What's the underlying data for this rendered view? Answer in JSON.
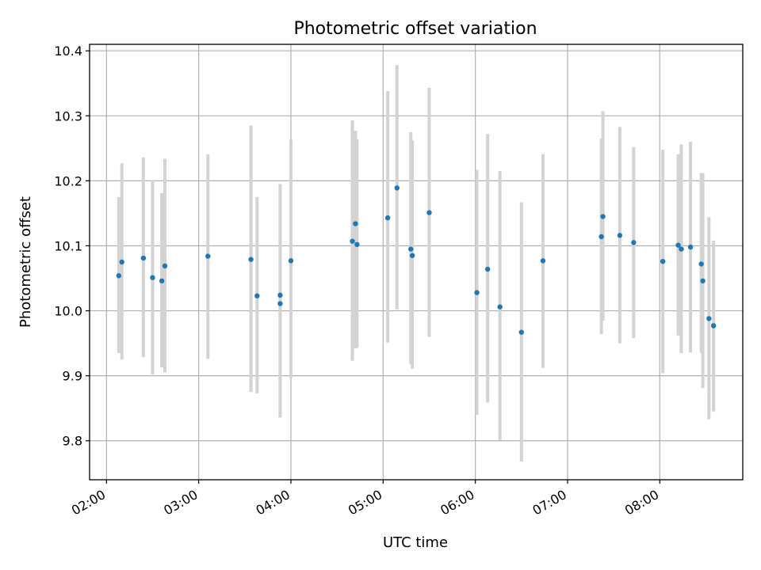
{
  "chart_data": {
    "type": "scatter",
    "title": "Photometric offset variation",
    "xlabel": "UTC time",
    "ylabel": "Photometric offset",
    "x_ticks": [
      "02:00",
      "03:00",
      "04:00",
      "05:00",
      "06:00",
      "07:00",
      "08:00"
    ],
    "y_ticks": [
      "9.8",
      "9.9",
      "10.0",
      "10.1",
      "10.2",
      "10.3",
      "10.4"
    ],
    "xlim": [
      "01:49",
      "08:54"
    ],
    "ylim": [
      9.74,
      10.41
    ],
    "grid": true,
    "colors": {
      "point": "#1f77b4",
      "errorbar": "#d3d3d3",
      "grid": "#b0b0b0"
    },
    "points": [
      {
        "t": "02:08",
        "y": 10.054,
        "lo": 9.935,
        "hi": 10.175
      },
      {
        "t": "02:10",
        "y": 10.075,
        "lo": 9.925,
        "hi": 10.227
      },
      {
        "t": "02:24",
        "y": 10.081,
        "lo": 9.929,
        "hi": 10.236
      },
      {
        "t": "02:30",
        "y": 10.051,
        "lo": 9.902,
        "hi": 10.201
      },
      {
        "t": "02:36",
        "y": 10.046,
        "lo": 9.913,
        "hi": 10.181
      },
      {
        "t": "02:38",
        "y": 10.069,
        "lo": 9.905,
        "hi": 10.234
      },
      {
        "t": "03:06",
        "y": 10.084,
        "lo": 9.926,
        "hi": 10.241
      },
      {
        "t": "03:34",
        "y": 10.079,
        "lo": 9.875,
        "hi": 10.285
      },
      {
        "t": "03:38",
        "y": 10.023,
        "lo": 9.873,
        "hi": 10.175
      },
      {
        "t": "03:53",
        "y": 10.024,
        "lo": 9.836,
        "hi": 10.195
      },
      {
        "t": "03:53",
        "y": 10.011,
        "lo": 9.836,
        "hi": 10.188
      },
      {
        "t": "04:00",
        "y": 10.077,
        "lo": 9.897,
        "hi": 10.263
      },
      {
        "t": "04:40",
        "y": 10.107,
        "lo": 9.923,
        "hi": 10.293
      },
      {
        "t": "04:42",
        "y": 10.134,
        "lo": 9.942,
        "hi": 10.277
      },
      {
        "t": "04:43",
        "y": 10.102,
        "lo": 9.943,
        "hi": 10.264
      },
      {
        "t": "05:03",
        "y": 10.143,
        "lo": 9.951,
        "hi": 10.338
      },
      {
        "t": "05:09",
        "y": 10.189,
        "lo": 10.002,
        "hi": 10.378
      },
      {
        "t": "05:18",
        "y": 10.095,
        "lo": 9.918,
        "hi": 10.275
      },
      {
        "t": "05:19",
        "y": 10.085,
        "lo": 9.911,
        "hi": 10.262
      },
      {
        "t": "05:30",
        "y": 10.151,
        "lo": 9.96,
        "hi": 10.343
      },
      {
        "t": "06:01",
        "y": 10.028,
        "lo": 9.84,
        "hi": 10.217
      },
      {
        "t": "06:08",
        "y": 10.064,
        "lo": 9.859,
        "hi": 10.272
      },
      {
        "t": "06:16",
        "y": 10.006,
        "lo": 9.801,
        "hi": 10.215
      },
      {
        "t": "06:30",
        "y": 9.967,
        "lo": 9.768,
        "hi": 10.167
      },
      {
        "t": "06:44",
        "y": 10.077,
        "lo": 9.912,
        "hi": 10.241
      },
      {
        "t": "07:22",
        "y": 10.114,
        "lo": 9.964,
        "hi": 10.265
      },
      {
        "t": "07:23",
        "y": 10.145,
        "lo": 9.985,
        "hi": 10.307
      },
      {
        "t": "07:34",
        "y": 10.116,
        "lo": 9.95,
        "hi": 10.283
      },
      {
        "t": "07:43",
        "y": 10.105,
        "lo": 9.958,
        "hi": 10.252
      },
      {
        "t": "08:02",
        "y": 10.076,
        "lo": 9.904,
        "hi": 10.248
      },
      {
        "t": "08:12",
        "y": 10.101,
        "lo": 9.962,
        "hi": 10.241
      },
      {
        "t": "08:14",
        "y": 10.095,
        "lo": 9.935,
        "hi": 10.256
      },
      {
        "t": "08:20",
        "y": 10.098,
        "lo": 9.936,
        "hi": 10.26
      },
      {
        "t": "08:27",
        "y": 10.072,
        "lo": 9.935,
        "hi": 10.212
      },
      {
        "t": "08:28",
        "y": 10.046,
        "lo": 9.881,
        "hi": 10.212
      },
      {
        "t": "08:32",
        "y": 9.988,
        "lo": 9.833,
        "hi": 10.144
      },
      {
        "t": "08:35",
        "y": 9.977,
        "lo": 9.845,
        "hi": 10.108
      }
    ]
  }
}
